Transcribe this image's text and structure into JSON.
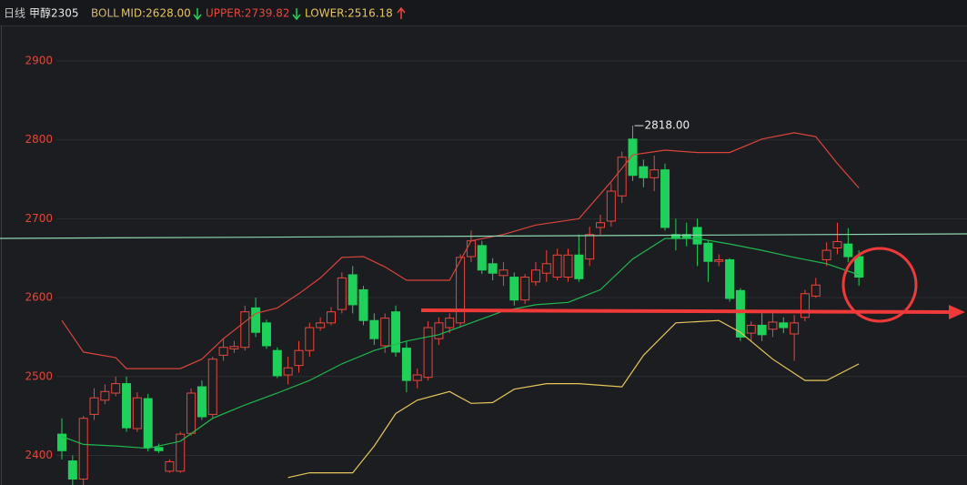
{
  "chart_data": {
    "type": "candlestick",
    "header": {
      "period": "日线",
      "symbol": "甲醇2305",
      "indicator": "BOLL",
      "mid": "MID:2628.00",
      "upper": "UPPER:2739.82",
      "lower": "LOWER:2516.18"
    },
    "open": [
      2427,
      2393,
      2370,
      2452,
      2470,
      2479,
      2491,
      2434,
      2472,
      2410,
      2380,
      2380,
      2428,
      2487,
      2452,
      2527,
      2535,
      2537,
      2587,
      2568,
      2533,
      2502,
      2514,
      2533,
      2562,
      2568,
      2585,
      2629,
      2610,
      2571,
      2539,
      2582,
      2536,
      2495,
      2499,
      2548,
      2562,
      2568,
      2652,
      2666,
      2643,
      2628,
      2626,
      2597,
      2620,
      2631,
      2626,
      2626,
      2654,
      2649,
      2689,
      2697,
      2729,
      2801,
      2766,
      2752,
      2762,
      2680,
      2680,
      2689,
      2669,
      2646,
      2648,
      2609,
      2555,
      2565,
      2560,
      2568,
      2554,
      2575,
      2602,
      2648,
      2663,
      2668,
      2652
    ],
    "close": [
      2406,
      2370,
      2447,
      2473,
      2481,
      2491,
      2435,
      2473,
      2410,
      2406,
      2392,
      2427,
      2479,
      2449,
      2522,
      2537,
      2538,
      2582,
      2556,
      2539,
      2501,
      2511,
      2533,
      2562,
      2568,
      2582,
      2625,
      2591,
      2571,
      2548,
      2574,
      2531,
      2495,
      2502,
      2562,
      2568,
      2574,
      2651,
      2672,
      2635,
      2631,
      2635,
      2597,
      2626,
      2635,
      2643,
      2654,
      2654,
      2624,
      2680,
      2695,
      2735,
      2778,
      2755,
      2752,
      2762,
      2689,
      2675,
      2675,
      2668,
      2646,
      2648,
      2599,
      2550,
      2565,
      2553,
      2569,
      2562,
      2568,
      2605,
      2616,
      2660,
      2671,
      2652,
      2626
    ],
    "high": [
      2447,
      2400,
      2450,
      2485,
      2490,
      2500,
      2500,
      2480,
      2478,
      2415,
      2395,
      2430,
      2485,
      2495,
      2525,
      2548,
      2545,
      2590,
      2600,
      2572,
      2537,
      2525,
      2545,
      2568,
      2575,
      2588,
      2632,
      2640,
      2615,
      2580,
      2580,
      2590,
      2545,
      2510,
      2570,
      2575,
      2580,
      2655,
      2685,
      2672,
      2650,
      2645,
      2632,
      2630,
      2645,
      2660,
      2662,
      2662,
      2680,
      2690,
      2705,
      2745,
      2785,
      2818,
      2775,
      2780,
      2770,
      2700,
      2695,
      2700,
      2672,
      2655,
      2650,
      2612,
      2570,
      2580,
      2580,
      2575,
      2578,
      2610,
      2625,
      2670,
      2695,
      2688,
      2660
    ],
    "low": [
      2395,
      2360,
      2360,
      2445,
      2465,
      2475,
      2430,
      2430,
      2405,
      2403,
      2378,
      2378,
      2425,
      2445,
      2448,
      2520,
      2530,
      2533,
      2550,
      2535,
      2498,
      2490,
      2505,
      2525,
      2558,
      2565,
      2580,
      2580,
      2565,
      2540,
      2530,
      2525,
      2480,
      2485,
      2495,
      2540,
      2555,
      2562,
      2645,
      2630,
      2622,
      2615,
      2590,
      2592,
      2615,
      2620,
      2622,
      2620,
      2620,
      2640,
      2680,
      2690,
      2720,
      2748,
      2740,
      2735,
      2685,
      2660,
      2665,
      2640,
      2620,
      2640,
      2595,
      2545,
      2545,
      2545,
      2550,
      2555,
      2520,
      2570,
      2600,
      2640,
      2655,
      2645,
      2615
    ],
    "up_color": "#e8473e",
    "down_color": "#1fd15a",
    "bands": [
      {
        "color": "#d9443b",
        "x": [
          0,
          2,
          5,
          6,
          11,
          13,
          15,
          18,
          20,
          22,
          24,
          26,
          28,
          30,
          32,
          36,
          38,
          41,
          44,
          48,
          51,
          53,
          56,
          59,
          62,
          65,
          68,
          70,
          72,
          74
        ],
        "values": [
          2571,
          2531,
          2524,
          2510,
          2510,
          2522,
          2548,
          2580,
          2587,
          2605,
          2625,
          2651,
          2652,
          2639,
          2622,
          2622,
          2672,
          2680,
          2692,
          2700,
          2747,
          2781,
          2787,
          2784,
          2784,
          2801,
          2809,
          2804,
          2770,
          2739
        ]
      },
      {
        "color": "#1fb84f",
        "x": [
          0,
          2,
          5,
          8,
          11,
          14,
          17,
          20,
          23,
          26,
          29,
          32,
          35,
          38,
          41,
          44,
          47,
          50,
          53,
          56,
          59,
          62,
          65,
          68,
          71,
          74
        ],
        "values": [
          2424,
          2414,
          2412,
          2409,
          2418,
          2447,
          2464,
          2479,
          2495,
          2516,
          2533,
          2545,
          2553,
          2568,
          2583,
          2591,
          2594,
          2610,
          2649,
          2675,
          2675,
          2668,
          2660,
          2651,
          2643,
          2629
        ]
      },
      {
        "color": "#e6c65a",
        "x": [
          21,
          23,
          27,
          29,
          31,
          33,
          36,
          38,
          40,
          42,
          45,
          48,
          52,
          54,
          57,
          61,
          63,
          66,
          69,
          71,
          74
        ],
        "values": [
          2372,
          2378,
          2378,
          2412,
          2453,
          2470,
          2481,
          2466,
          2467,
          2484,
          2491,
          2491,
          2487,
          2527,
          2568,
          2571,
          2556,
          2522,
          2495,
          2495,
          2516
        ]
      }
    ],
    "annotation": {
      "text": "2818.00",
      "x": 53,
      "value": 2818
    },
    "ylim": [
      2362.5,
      2945
    ],
    "yticks": [
      2400,
      2500,
      2600,
      2700,
      2800,
      2900
    ],
    "grid": true
  }
}
